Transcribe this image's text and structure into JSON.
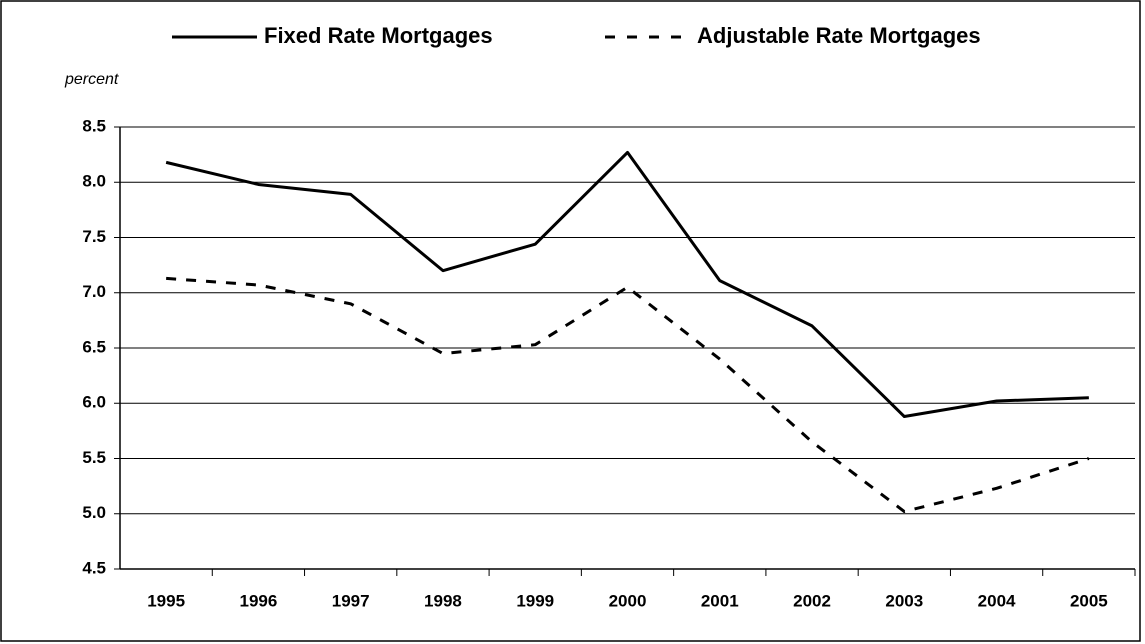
{
  "chart_data": {
    "type": "line",
    "y_label": "percent",
    "categories": [
      "1995",
      "1996",
      "1997",
      "1998",
      "1999",
      "2000",
      "2001",
      "2002",
      "2003",
      "2004",
      "2005"
    ],
    "series": [
      {
        "name": "Fixed Rate Mortgages",
        "color": "#000000",
        "dash": "solid",
        "values": [
          8.18,
          7.98,
          7.89,
          7.2,
          7.44,
          8.27,
          7.11,
          6.7,
          5.88,
          6.02,
          6.05
        ]
      },
      {
        "name": "Adjustable Rate Mortgages",
        "color": "#000000",
        "dash": "dashed",
        "values": [
          7.13,
          7.07,
          6.9,
          6.45,
          6.53,
          7.05,
          6.4,
          5.65,
          5.02,
          5.23,
          5.5
        ]
      }
    ],
    "ylim": [
      4.5,
      8.5
    ],
    "yticks": [
      {
        "value": 4.5,
        "label": "4.5"
      },
      {
        "value": 5,
        "label": "5.0"
      },
      {
        "value": 5.5,
        "label": "5.5"
      },
      {
        "value": 6,
        "label": "6.0"
      },
      {
        "value": 6.5,
        "label": "6.5"
      },
      {
        "value": 7,
        "label": "7.0"
      },
      {
        "value": 7.5,
        "label": "7.5"
      },
      {
        "value": 8,
        "label": "8.0"
      },
      {
        "value": 8.5,
        "label": "8.5"
      }
    ],
    "grid": true
  }
}
